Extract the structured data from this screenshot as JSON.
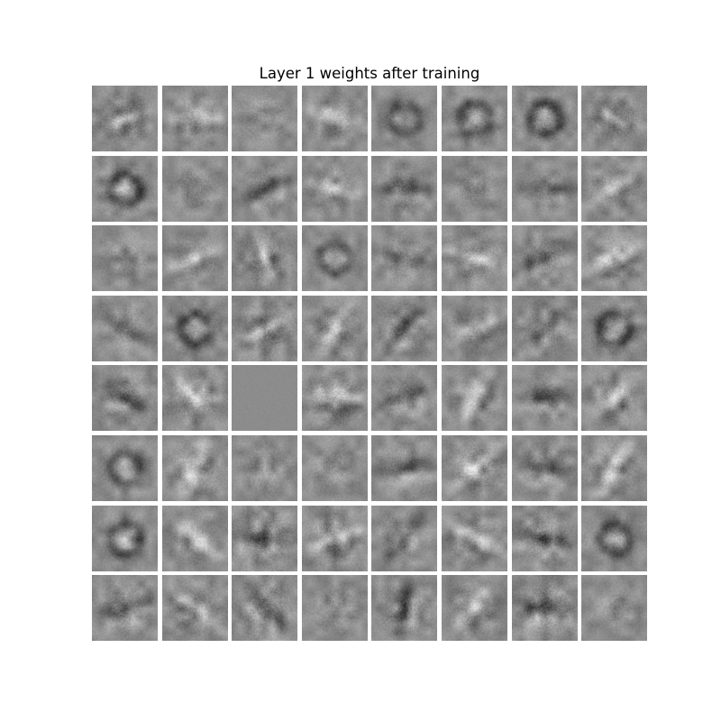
{
  "figure": {
    "title": "Layer 1 weights after training",
    "rows": 8,
    "cols": 8,
    "colormap": "gray",
    "background": "#ffffff",
    "tile_base": "#8c8c8c"
  },
  "tiles": [
    {
      "pattern": "blob",
      "angle": -20,
      "contrast": 0.55
    },
    {
      "pattern": "stroke",
      "angle": 0,
      "contrast": 0.5
    },
    {
      "pattern": "noise",
      "angle": 0,
      "contrast": 0.45
    },
    {
      "pattern": "stroke",
      "angle": 20,
      "contrast": 0.5
    },
    {
      "pattern": "ring",
      "angle": 0,
      "contrast": 0.45
    },
    {
      "pattern": "ring",
      "angle": 10,
      "contrast": 0.5
    },
    {
      "pattern": "ring",
      "angle": -30,
      "contrast": 0.55
    },
    {
      "pattern": "blob",
      "angle": 30,
      "contrast": 0.55
    },
    {
      "pattern": "ring",
      "angle": 0,
      "contrast": 0.55
    },
    {
      "pattern": "noise",
      "angle": 0,
      "contrast": 0.45
    },
    {
      "pattern": "stroke",
      "angle": -25,
      "contrast": 0.5
    },
    {
      "pattern": "stroke",
      "angle": 10,
      "contrast": 0.5
    },
    {
      "pattern": "stroke",
      "angle": 0,
      "contrast": 0.5
    },
    {
      "pattern": "noise",
      "angle": 0,
      "contrast": 0.45
    },
    {
      "pattern": "stroke",
      "angle": 0,
      "contrast": 0.45
    },
    {
      "pattern": "stroke",
      "angle": -40,
      "contrast": 0.5
    },
    {
      "pattern": "noise",
      "angle": 0,
      "contrast": 0.45
    },
    {
      "pattern": "stroke",
      "angle": -20,
      "contrast": 0.5
    },
    {
      "pattern": "blob",
      "angle": 70,
      "contrast": 0.6
    },
    {
      "pattern": "ring",
      "angle": 0,
      "contrast": 0.45
    },
    {
      "pattern": "stroke",
      "angle": 15,
      "contrast": 0.5
    },
    {
      "pattern": "stroke",
      "angle": 20,
      "contrast": 0.55
    },
    {
      "pattern": "stroke",
      "angle": -20,
      "contrast": 0.55
    },
    {
      "pattern": "stroke",
      "angle": -25,
      "contrast": 0.55
    },
    {
      "pattern": "stroke",
      "angle": 30,
      "contrast": 0.5
    },
    {
      "pattern": "ring",
      "angle": 0,
      "contrast": 0.5
    },
    {
      "pattern": "blob",
      "angle": -30,
      "contrast": 0.6
    },
    {
      "pattern": "stroke",
      "angle": -60,
      "contrast": 0.55
    },
    {
      "pattern": "stroke",
      "angle": -50,
      "contrast": 0.55
    },
    {
      "pattern": "stroke",
      "angle": -25,
      "contrast": 0.5
    },
    {
      "pattern": "stroke",
      "angle": -35,
      "contrast": 0.55
    },
    {
      "pattern": "ring",
      "angle": 0,
      "contrast": 0.55
    },
    {
      "pattern": "stroke",
      "angle": 30,
      "contrast": 0.55
    },
    {
      "pattern": "stroke",
      "angle": 50,
      "contrast": 0.6
    },
    {
      "pattern": "flat",
      "angle": 0,
      "contrast": 0.18
    },
    {
      "pattern": "stroke",
      "angle": 0,
      "contrast": 0.6
    },
    {
      "pattern": "stroke",
      "angle": -20,
      "contrast": 0.5
    },
    {
      "pattern": "stroke",
      "angle": -60,
      "contrast": 0.5
    },
    {
      "pattern": "stroke",
      "angle": 0,
      "contrast": 0.5
    },
    {
      "pattern": "stroke",
      "angle": -35,
      "contrast": 0.55
    },
    {
      "pattern": "ring",
      "angle": 0,
      "contrast": 0.5
    },
    {
      "pattern": "stroke",
      "angle": -70,
      "contrast": 0.55
    },
    {
      "pattern": "noise",
      "angle": 0,
      "contrast": 0.45
    },
    {
      "pattern": "noise",
      "angle": 0,
      "contrast": 0.45
    },
    {
      "pattern": "stroke",
      "angle": -10,
      "contrast": 0.5
    },
    {
      "pattern": "stroke",
      "angle": -40,
      "contrast": 0.6
    },
    {
      "pattern": "stroke",
      "angle": 20,
      "contrast": 0.5
    },
    {
      "pattern": "stroke",
      "angle": -60,
      "contrast": 0.55
    },
    {
      "pattern": "ring",
      "angle": 0,
      "contrast": 0.5
    },
    {
      "pattern": "stroke",
      "angle": 40,
      "contrast": 0.5
    },
    {
      "pattern": "stroke",
      "angle": 5,
      "contrast": 0.65
    },
    {
      "pattern": "stroke",
      "angle": -20,
      "contrast": 0.6
    },
    {
      "pattern": "stroke",
      "angle": -50,
      "contrast": 0.5
    },
    {
      "pattern": "stroke",
      "angle": 30,
      "contrast": 0.55
    },
    {
      "pattern": "stroke",
      "angle": 10,
      "contrast": 0.6
    },
    {
      "pattern": "ring",
      "angle": 0,
      "contrast": 0.5
    },
    {
      "pattern": "stroke",
      "angle": -15,
      "contrast": 0.55
    },
    {
      "pattern": "stroke",
      "angle": 40,
      "contrast": 0.55
    },
    {
      "pattern": "stroke",
      "angle": 45,
      "contrast": 0.6
    },
    {
      "pattern": "noise",
      "angle": 0,
      "contrast": 0.45
    },
    {
      "pattern": "stroke",
      "angle": -80,
      "contrast": 0.6
    },
    {
      "pattern": "stroke",
      "angle": -50,
      "contrast": 0.55
    },
    {
      "pattern": "stroke",
      "angle": 0,
      "contrast": 0.65
    },
    {
      "pattern": "noise",
      "angle": 0,
      "contrast": 0.45
    }
  ]
}
